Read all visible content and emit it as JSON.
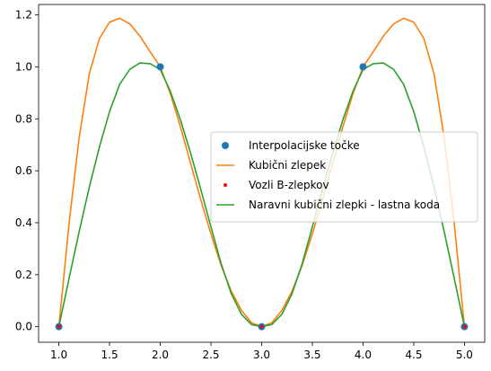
{
  "chart_data": {
    "type": "line",
    "xlim": [
      0.8,
      5.2
    ],
    "ylim": [
      -0.06,
      1.24
    ],
    "xticks": [
      "1.0",
      "1.5",
      "2.0",
      "2.5",
      "3.0",
      "3.5",
      "4.0",
      "4.5",
      "5.0"
    ],
    "yticks": [
      "0.0",
      "0.2",
      "0.4",
      "0.6",
      "0.8",
      "1.0",
      "1.2"
    ],
    "grid": false,
    "legend": "center-right",
    "series": [
      {
        "name": "Interpolacijske točke",
        "kind": "points",
        "color": "#1f77b4",
        "x": [
          1,
          2,
          3,
          4,
          5
        ],
        "y": [
          0,
          1,
          0,
          1,
          0
        ]
      },
      {
        "name": "Kubični zlepek",
        "kind": "line",
        "color": "#ff7f0e",
        "x": [
          1.0,
          1.1,
          1.2,
          1.3,
          1.4,
          1.5,
          1.6,
          1.7,
          1.8,
          1.9,
          2.0,
          2.1,
          2.2,
          2.3,
          2.4,
          2.5,
          2.6,
          2.7,
          2.8,
          2.9,
          3.0,
          3.1,
          3.2,
          3.3,
          3.4,
          3.5,
          3.6,
          3.7,
          3.8,
          3.9,
          4.0,
          4.1,
          4.2,
          4.3,
          4.4,
          4.5,
          4.6,
          4.7,
          4.8,
          4.9,
          5.0
        ],
        "y": [
          0.0,
          0.396,
          0.728,
          0.973,
          1.109,
          1.172,
          1.187,
          1.165,
          1.118,
          1.058,
          1.0,
          0.896,
          0.768,
          0.628,
          0.488,
          0.357,
          0.236,
          0.137,
          0.063,
          0.015,
          0.0,
          0.015,
          0.063,
          0.137,
          0.236,
          0.357,
          0.488,
          0.628,
          0.768,
          0.896,
          1.0,
          1.058,
          1.118,
          1.165,
          1.187,
          1.172,
          1.109,
          0.973,
          0.728,
          0.396,
          0.0
        ]
      },
      {
        "name": "Vozli B-zlepkov",
        "kind": "points",
        "color": "#ff0000",
        "x": [
          1,
          3,
          5
        ],
        "y": [
          0,
          0,
          0
        ]
      },
      {
        "name": "Naravni kubični zlepki - lastna koda",
        "kind": "line",
        "color": "#2ca02c",
        "x": [
          1.0,
          1.1,
          1.2,
          1.3,
          1.4,
          1.5,
          1.6,
          1.7,
          1.8,
          1.9,
          2.0,
          2.1,
          2.2,
          2.3,
          2.4,
          2.5,
          2.6,
          2.7,
          2.8,
          2.9,
          3.0,
          3.1,
          3.2,
          3.3,
          3.4,
          3.5,
          3.6,
          3.7,
          3.8,
          3.9,
          4.0,
          4.1,
          4.2,
          4.3,
          4.4,
          4.5,
          4.6,
          4.7,
          4.8,
          4.9,
          5.0
        ],
        "y": [
          0.0,
          0.185,
          0.366,
          0.537,
          0.692,
          0.828,
          0.933,
          0.991,
          1.015,
          1.012,
          0.99,
          0.905,
          0.795,
          0.667,
          0.528,
          0.384,
          0.243,
          0.127,
          0.048,
          0.008,
          0.0,
          0.008,
          0.048,
          0.127,
          0.243,
          0.384,
          0.528,
          0.667,
          0.795,
          0.905,
          0.99,
          1.012,
          1.015,
          0.991,
          0.933,
          0.828,
          0.692,
          0.537,
          0.366,
          0.185,
          0.0
        ]
      }
    ]
  }
}
